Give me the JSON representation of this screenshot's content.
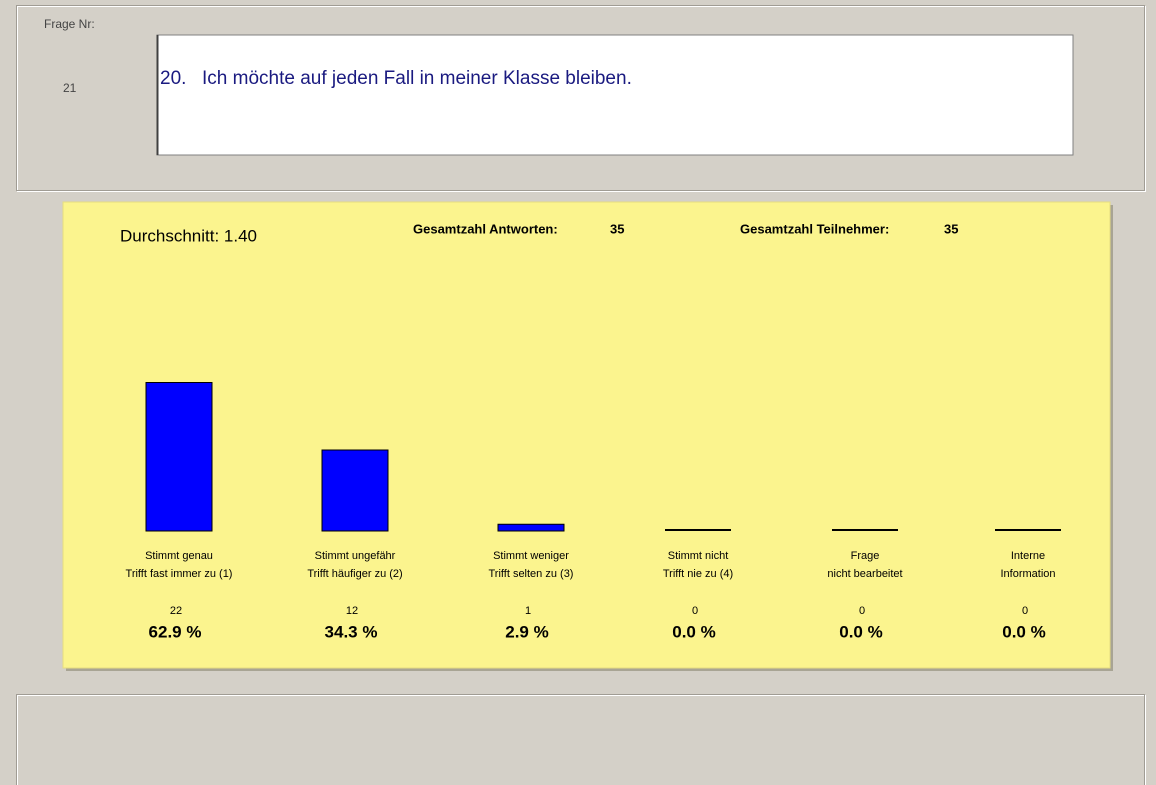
{
  "question": {
    "number_label": "Frage Nr:",
    "number": 21,
    "index": "20.",
    "text": "Ich möchte auf jeden Fall in meiner Klasse bleiben."
  },
  "summary": {
    "average": "Durchschnitt: 1.40",
    "answers_label": "Gesamtzahl Antworten:",
    "answers": 35,
    "participants_label": "Gesamtzahl Teilnehmer:",
    "participants": 35
  },
  "chart_data": {
    "type": "bar",
    "color": "#0000ff",
    "categories": [
      [
        "Stimmt genau",
        "Trifft fast immer zu (1)"
      ],
      [
        "Stimmt ungefähr",
        "Trifft häufiger zu (2)"
      ],
      [
        "Stimmt weniger",
        "Trifft selten zu (3)"
      ],
      [
        "Stimmt nicht",
        "Trifft nie zu (4)"
      ],
      [
        "Frage",
        "nicht bearbeitet"
      ],
      [
        "Interne",
        "Information"
      ]
    ],
    "values": [
      22,
      12,
      1,
      0,
      0,
      0
    ],
    "percentages": [
      "62.9 %",
      "34.3 %",
      "2.9 %",
      "0.0 %",
      "0.0 %",
      "0.0 %"
    ]
  }
}
